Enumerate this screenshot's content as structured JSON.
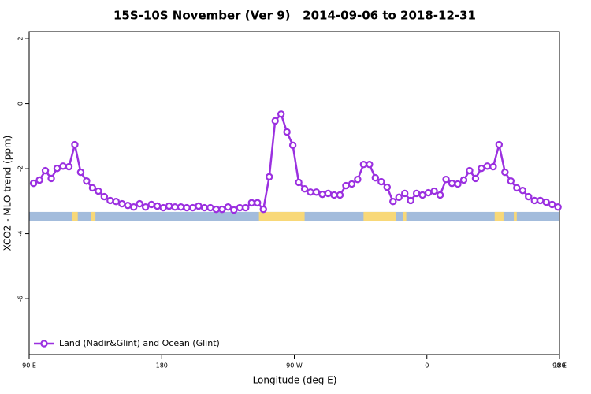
{
  "chart_data": {
    "type": "line",
    "title": "15S-10S November (Ver 9)   2014-09-06 to 2018-12-31",
    "x_label": "Longitude (deg E)",
    "y_label": "XCO2 - MLO trend (ppm)",
    "xlim": [
      90,
      450
    ],
    "xticks": [
      {
        "value": 90,
        "label": "90 E"
      },
      {
        "value": 180,
        "label": "180"
      },
      {
        "value": 270,
        "label": "90 W"
      },
      {
        "value": 360,
        "label": "0"
      },
      {
        "value": 450,
        "label": "90 E"
      },
      {
        "value": 540,
        "label": "180"
      }
    ],
    "ylim": [
      -7.72,
      2.22
    ],
    "yticks": [
      2,
      0,
      -2,
      -4,
      -6
    ],
    "legend": "bottom-left",
    "series": [
      {
        "name": "Land (Nadir&Glint) and Ocean (Glint)",
        "color": "#9b30e0",
        "x": [
          93,
          97,
          101,
          105,
          109,
          113,
          117,
          121,
          125,
          129,
          133,
          137,
          141,
          145,
          149,
          153,
          157,
          161,
          165,
          169,
          173,
          177,
          181,
          185,
          189,
          193,
          197,
          201,
          205,
          209,
          213,
          217,
          221,
          225,
          229,
          233,
          237,
          241,
          245,
          249,
          253,
          257,
          261,
          265,
          269,
          273,
          277,
          281,
          285,
          289,
          293,
          297,
          301,
          305,
          309,
          313,
          317,
          321,
          325,
          329,
          333,
          337,
          341,
          345,
          349,
          353,
          357,
          361,
          365,
          369,
          373,
          377,
          381,
          385,
          389,
          393,
          397,
          401,
          405,
          409,
          413,
          417,
          421,
          425,
          429,
          433,
          437,
          441,
          445,
          449
        ],
        "values": [
          -2.45,
          -2.35,
          -2.06,
          -2.3,
          -1.99,
          -1.92,
          -1.94,
          -1.26,
          -2.11,
          -2.38,
          -2.59,
          -2.69,
          -2.86,
          -2.98,
          -3.01,
          -3.08,
          -3.13,
          -3.18,
          -3.08,
          -3.18,
          -3.1,
          -3.15,
          -3.2,
          -3.15,
          -3.18,
          -3.18,
          -3.2,
          -3.2,
          -3.15,
          -3.2,
          -3.2,
          -3.25,
          -3.25,
          -3.18,
          -3.27,
          -3.2,
          -3.2,
          -3.05,
          -3.05,
          -3.25,
          -2.25,
          -0.53,
          -0.32,
          -0.87,
          -1.28,
          -2.42,
          -2.62,
          -2.72,
          -2.72,
          -2.79,
          -2.76,
          -2.81,
          -2.81,
          -2.52,
          -2.47,
          -2.33,
          -1.87,
          -1.87,
          -2.28,
          -2.4,
          -2.57,
          -3.01,
          -2.88,
          -2.76,
          -2.98,
          -2.76,
          -2.81,
          -2.74,
          -2.69,
          -2.81,
          -2.33,
          -2.45,
          -2.47,
          -2.35,
          -2.06,
          -2.3,
          -1.99,
          -1.92,
          -1.94,
          -1.26,
          -2.11,
          -2.38,
          -2.59,
          -2.67,
          -2.86,
          -2.98,
          -2.98,
          -3.03,
          -3.1,
          -3.18
        ]
      }
    ],
    "surface_band": {
      "range": [
        -3.33,
        -3.6
      ],
      "ocean_color": "#a3bcdc",
      "land_color": "#f8d878",
      "land_spans": [
        [
          119,
          123
        ],
        [
          132,
          135
        ],
        [
          246,
          277
        ],
        [
          317,
          339
        ],
        [
          344,
          346
        ],
        [
          406,
          412
        ],
        [
          419,
          421
        ]
      ]
    }
  }
}
